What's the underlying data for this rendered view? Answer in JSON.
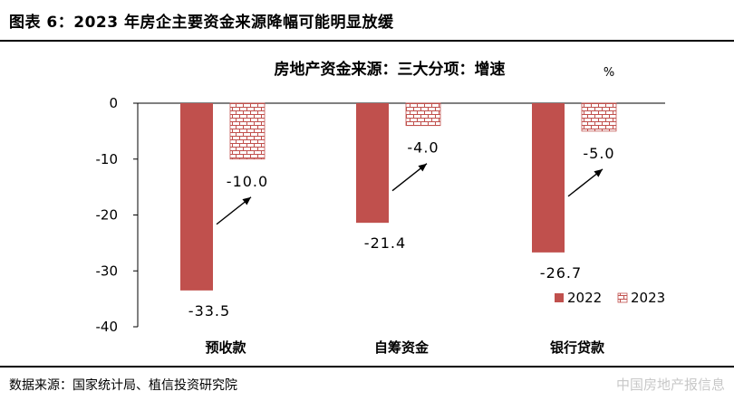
{
  "figure": {
    "title": "图表 6：2023 年房企主要资金来源降幅可能明显放缓",
    "source": "数据来源：国家统计局、植信投资研究院",
    "watermark": "中国房地产报信息"
  },
  "chart_data": {
    "type": "bar",
    "title": "房地产资金来源：三大分项：增速",
    "unit": "%",
    "categories": [
      "预收款",
      "自筹资金",
      "银行贷款"
    ],
    "series": [
      {
        "name": "2022",
        "values": [
          -33.5,
          -21.4,
          -26.7
        ],
        "color": "#c0504d",
        "pattern": "solid"
      },
      {
        "name": "2023",
        "values": [
          -10.0,
          -4.0,
          -5.0
        ],
        "color": "#c0504d",
        "pattern": "brick"
      }
    ],
    "value_labels": {
      "2022": [
        "-33.5",
        "-21.4",
        "-26.7"
      ],
      "2023": [
        "-10.0",
        "-4.0",
        "-5.0"
      ]
    },
    "ylim": [
      -40,
      0
    ],
    "yticks": [
      0,
      -10,
      -20,
      -30,
      -40
    ],
    "ytick_labels": [
      "0",
      "-10",
      "-20",
      "-30",
      "-40"
    ],
    "annotations": "upward arrows from 2022 bars to 2023 bars",
    "legend_position": "bottom-right",
    "grid": false
  }
}
